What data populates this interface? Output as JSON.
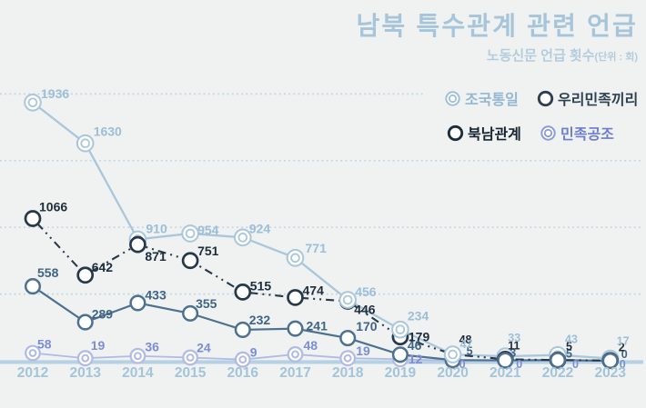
{
  "title": "남북 특수관계 관련 언급",
  "subtitle": {
    "main": "노동신문 언급 횟수",
    "unit": "(단위 : 회)"
  },
  "colors": {
    "background": "#eff2f0",
    "title": "#a6c4da",
    "subtitle": "#b4ccdd",
    "gridline": "#c0d5e4",
    "axis_line": "#b5d1e3",
    "x_labels": "#a3c4da"
  },
  "legend": [
    {
      "label": "조국통일",
      "color": "#9fc0d8",
      "text_color": "#93b8d2",
      "marker": "double"
    },
    {
      "label": "우리민족끼리",
      "color": "#2e4050",
      "text_color": "#2e4050",
      "marker": "single"
    },
    {
      "label": "북남관계",
      "color": "#1d2c3a",
      "text_color": "#17242f",
      "marker": "single"
    },
    {
      "label": "민족공조",
      "color": "#8d9bd9",
      "text_color": "#6c7ecd",
      "marker": "double"
    }
  ],
  "chart_data": {
    "type": "line",
    "title": "남북 특수관계 관련 언급",
    "subtitle": "노동신문 언급 횟수(단위 : 회)",
    "categories": [
      "2012",
      "2013",
      "2014",
      "2015",
      "2016",
      "2017",
      "2018",
      "2019",
      "2020",
      "2021",
      "2022",
      "2023"
    ],
    "ylim": [
      0,
      2000
    ],
    "gridlines": [
      500,
      1000,
      1500,
      2000
    ],
    "grid_style": "dotted horizontal",
    "legend_position": "top-right",
    "series": [
      {
        "name": "조국통일",
        "values": [
          1936,
          1630,
          910,
          954,
          924,
          771,
          456,
          234,
          47,
          33,
          43,
          17
        ],
        "color": "#a9c6db",
        "label_color": "#9cbed8",
        "marker": "double",
        "dash": false
      },
      {
        "name": "민족공조",
        "values": [
          58,
          19,
          36,
          24,
          9,
          48,
          19,
          12,
          0,
          0,
          0,
          0
        ],
        "color": "#b0bae4",
        "label_color": "#7d8dd3",
        "marker": "double",
        "dash": false
      },
      {
        "name": "우리민족끼리",
        "values": [
          558,
          289,
          433,
          355,
          232,
          241,
          170,
          46,
          5,
          3,
          5,
          0
        ],
        "color": "#4e7190",
        "label_color": "#3f6485",
        "marker": "single",
        "dash": false
      },
      {
        "name": "북남관계",
        "values": [
          1066,
          642,
          871,
          751,
          515,
          474,
          446,
          179,
          48,
          11,
          5,
          2
        ],
        "color": "#26384a",
        "label_color": "#1d2d3c",
        "marker": "single",
        "dash": true
      }
    ]
  }
}
